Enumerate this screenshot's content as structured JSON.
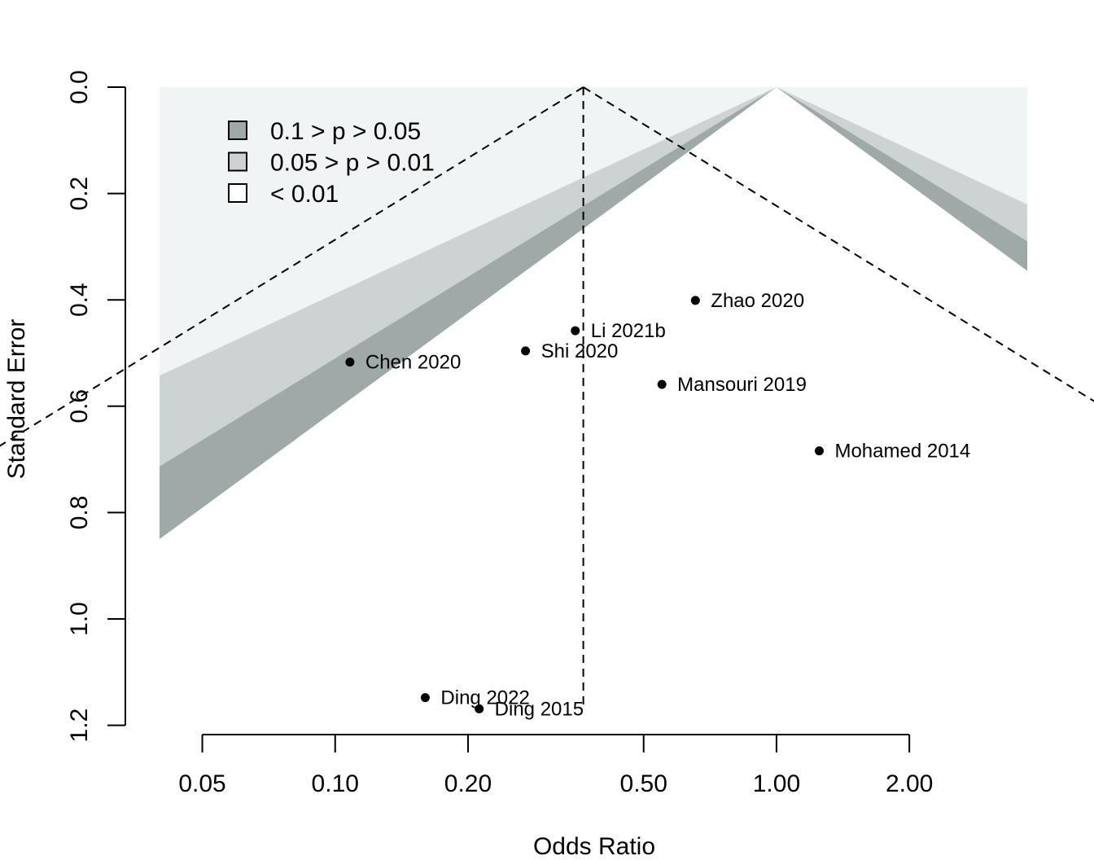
{
  "chart_data": {
    "type": "scatter",
    "title": "",
    "xlabel": "Odds Ratio",
    "ylabel": "Standard Error",
    "x_scale": "log",
    "xlim": [
      0.04,
      3.7
    ],
    "ylim": [
      1.17,
      0.0
    ],
    "x_ticks": [
      0.05,
      0.1,
      0.2,
      0.5,
      1.0,
      2.0
    ],
    "x_tick_labels": [
      "0.05",
      "0.10",
      "0.20",
      "0.50",
      "1.00",
      "2.00"
    ],
    "y_ticks": [
      0.0,
      0.2,
      0.4,
      0.6,
      0.8,
      1.0,
      1.2
    ],
    "y_tick_labels": [
      "0.0",
      "0.2",
      "0.4",
      "0.6",
      "0.8",
      "1.0",
      "1.2"
    ],
    "summary_estimate": 0.365,
    "contour_reference": 1.0,
    "contours": [
      {
        "label": "0.1 > p > 0.05",
        "color": "#9ea9a8",
        "z_inner": 1.645,
        "z_outer": 1.96
      },
      {
        "label": "0.05 > p > 0.01",
        "color": "#ccd3d2",
        "z_inner": 1.96,
        "z_outer": 2.576
      },
      {
        "label": "< 0.01",
        "color": "#f1f4f4",
        "z_inner": 2.576,
        "z_outer": null
      }
    ],
    "legend_position": "top-left",
    "points": [
      {
        "study": "Zhao 2020",
        "or": 0.655,
        "se": 0.401
      },
      {
        "study": "Li 2021b",
        "or": 0.35,
        "se": 0.458
      },
      {
        "study": "Shi 2020",
        "or": 0.27,
        "se": 0.496
      },
      {
        "study": "Chen 2020",
        "or": 0.108,
        "se": 0.517
      },
      {
        "study": "Mansouri 2019",
        "or": 0.55,
        "se": 0.559
      },
      {
        "study": "Mohamed 2014",
        "or": 1.25,
        "se": 0.684
      },
      {
        "study": "Ding 2022",
        "or": 0.16,
        "se": 1.148
      },
      {
        "study": "Ding 2015",
        "or": 0.212,
        "se": 1.169
      }
    ]
  }
}
